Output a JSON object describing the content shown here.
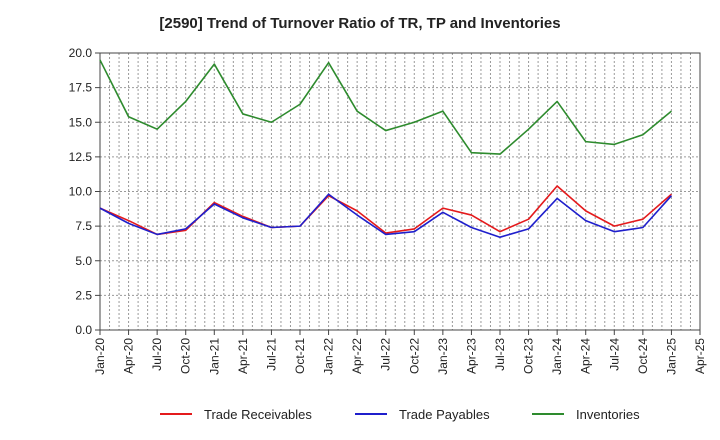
{
  "chart_data": {
    "type": "line",
    "title": "[2590]  Trend of Turnover Ratio of TR, TP and Inventories",
    "xlabel": "",
    "ylabel": "",
    "ylim": [
      0,
      20
    ],
    "yticks": [
      "0.0",
      "2.5",
      "5.0",
      "7.5",
      "10.0",
      "12.5",
      "15.0",
      "17.5",
      "20.0"
    ],
    "xlim": [
      "Jan-20",
      "Apr-25"
    ],
    "xticks": [
      "Jan-20",
      "Apr-20",
      "Jul-20",
      "Oct-20",
      "Jan-21",
      "Apr-21",
      "Jul-21",
      "Oct-21",
      "Jan-22",
      "Apr-22",
      "Jul-22",
      "Oct-22",
      "Jan-23",
      "Apr-23",
      "Jul-23",
      "Oct-23",
      "Jan-24",
      "Apr-24",
      "Jul-24",
      "Oct-24",
      "Jan-25",
      "Apr-25"
    ],
    "x": [
      "Jan-20",
      "Apr-20",
      "Jul-20",
      "Oct-20",
      "Jan-21",
      "Apr-21",
      "Jul-21",
      "Oct-21",
      "Jan-22",
      "Apr-22",
      "Jul-22",
      "Oct-22",
      "Jan-23",
      "Apr-23",
      "Jul-23",
      "Oct-23",
      "Jan-24",
      "Apr-24",
      "Jul-24",
      "Oct-24",
      "Jan-25"
    ],
    "grid": true,
    "legend_position": "bottom",
    "series": [
      {
        "name": "Trade Receivables",
        "color": "#e41a1c",
        "values": [
          8.8,
          7.9,
          6.9,
          7.2,
          9.2,
          8.2,
          7.4,
          7.5,
          9.7,
          8.6,
          7.0,
          7.3,
          8.8,
          8.3,
          7.1,
          8.0,
          10.4,
          8.6,
          7.5,
          8.0,
          9.8
        ]
      },
      {
        "name": "Trade Payables",
        "color": "#1f1fcc",
        "values": [
          8.8,
          7.7,
          6.9,
          7.3,
          9.1,
          8.1,
          7.4,
          7.5,
          9.8,
          8.3,
          6.9,
          7.1,
          8.5,
          7.4,
          6.7,
          7.3,
          9.5,
          7.9,
          7.1,
          7.4,
          9.7
        ]
      },
      {
        "name": "Inventories",
        "color": "#2e8b2e",
        "values": [
          19.5,
          15.4,
          14.5,
          16.5,
          19.2,
          15.6,
          15.0,
          16.3,
          19.3,
          15.8,
          14.4,
          15.0,
          15.8,
          12.8,
          12.7,
          14.5,
          16.5,
          13.6,
          13.4,
          14.1,
          15.8
        ]
      }
    ]
  }
}
